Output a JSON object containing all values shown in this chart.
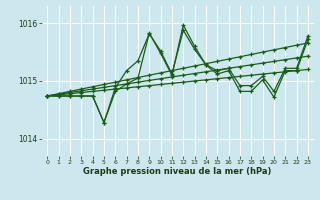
{
  "bg_color": "#cce8ee",
  "grid_color": "#ffffff",
  "line_color": "#1a5c1a",
  "x_ticks": [
    0,
    1,
    2,
    3,
    4,
    5,
    6,
    7,
    8,
    9,
    10,
    11,
    12,
    13,
    14,
    15,
    16,
    17,
    18,
    19,
    20,
    21,
    22,
    23
  ],
  "ylim": [
    1013.7,
    1016.3
  ],
  "yticks": [
    1014,
    1015,
    1016
  ],
  "xlabel": "Graphe pression niveau de la mer (hPa)",
  "line1": [
    1014.74,
    1014.74,
    1014.74,
    1014.74,
    1014.74,
    1014.28,
    1014.82,
    1014.95,
    1015.05,
    1015.83,
    1015.48,
    1015.1,
    1015.97,
    1015.6,
    1015.28,
    1015.12,
    1015.18,
    1014.82,
    1014.82,
    1015.02,
    1014.72,
    1015.18,
    1015.18,
    1015.72
  ],
  "line2": [
    1014.74,
    1014.74,
    1014.74,
    1014.74,
    1014.74,
    1014.28,
    1014.88,
    1015.18,
    1015.35,
    1015.82,
    1015.52,
    1015.12,
    1015.88,
    1015.55,
    1015.28,
    1015.18,
    1015.22,
    1014.92,
    1014.92,
    1015.08,
    1014.82,
    1015.22,
    1015.22,
    1015.78
  ],
  "trend1": [
    1014.74,
    1014.76,
    1014.78,
    1014.8,
    1014.82,
    1014.84,
    1014.86,
    1014.88,
    1014.9,
    1014.92,
    1014.94,
    1014.96,
    1014.98,
    1015.0,
    1015.02,
    1015.04,
    1015.06,
    1015.08,
    1015.1,
    1015.12,
    1015.14,
    1015.16,
    1015.18,
    1015.2
  ],
  "trend2": [
    1014.74,
    1014.77,
    1014.8,
    1014.83,
    1014.86,
    1014.89,
    1014.92,
    1014.95,
    1014.98,
    1015.01,
    1015.04,
    1015.07,
    1015.1,
    1015.13,
    1015.16,
    1015.19,
    1015.22,
    1015.25,
    1015.28,
    1015.31,
    1015.34,
    1015.37,
    1015.4,
    1015.43
  ],
  "trend3": [
    1014.74,
    1014.78,
    1014.82,
    1014.86,
    1014.9,
    1014.94,
    1014.98,
    1015.02,
    1015.06,
    1015.1,
    1015.14,
    1015.18,
    1015.22,
    1015.26,
    1015.3,
    1015.34,
    1015.38,
    1015.42,
    1015.46,
    1015.5,
    1015.54,
    1015.58,
    1015.62,
    1015.66
  ]
}
